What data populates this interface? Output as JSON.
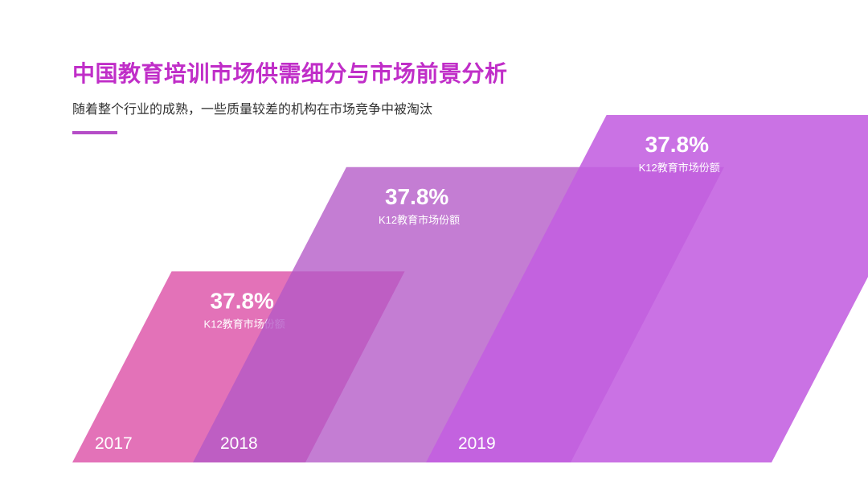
{
  "header": {
    "title": "中国教育培训市场供需细分与市场前景分析",
    "subtitle": "随着整个行业的成熟，一些质量较差的机构在市场竞争中被淘汰"
  },
  "colors": {
    "title": "#c02ec8",
    "accent": "#b54dc7",
    "label": "#ffffff",
    "bars": [
      "#df5fae",
      "#b458c6",
      "#c35ee0"
    ]
  },
  "chart_data": {
    "type": "bar",
    "categories": [
      "2017",
      "2018",
      "2019"
    ],
    "values": [
      37.8,
      37.8,
      37.8
    ],
    "value_labels": [
      "37.8%",
      "37.8%",
      "37.8%"
    ],
    "label_caption": "K12教育市场份额",
    "heights": [
      0.55,
      0.85,
      1.0
    ],
    "title": "",
    "xlabel": "",
    "ylabel": "",
    "grid": false,
    "legend": "none"
  }
}
